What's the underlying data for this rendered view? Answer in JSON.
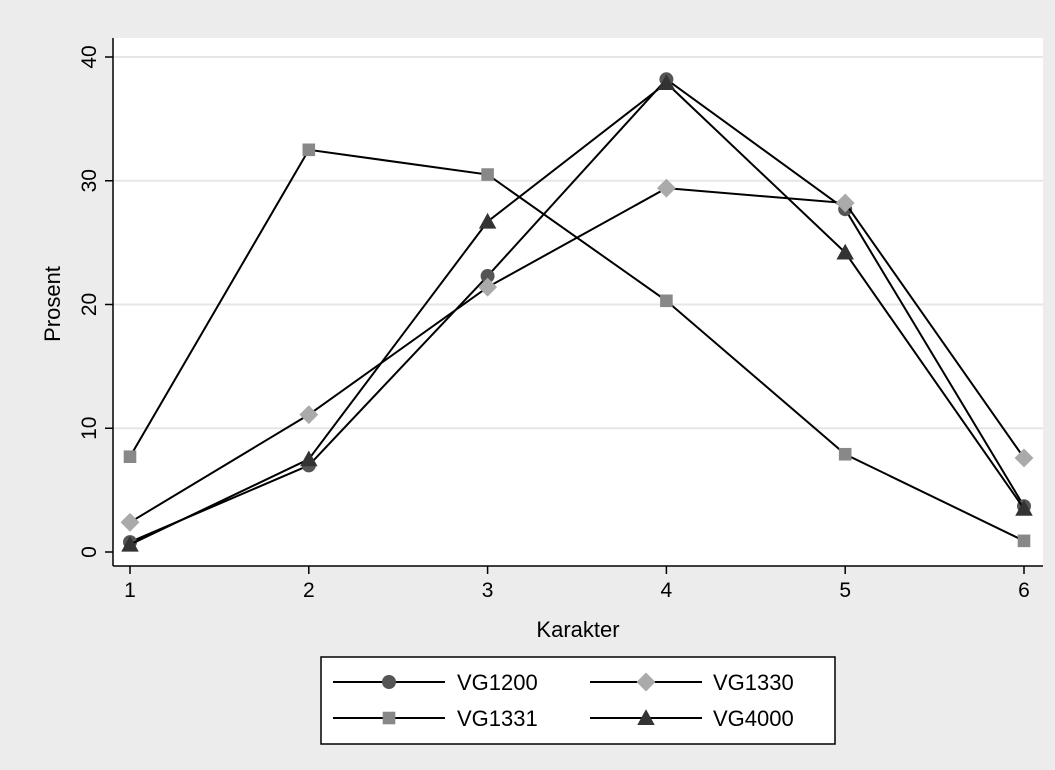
{
  "chart_data": {
    "type": "line",
    "xlabel": "Karakter",
    "ylabel": "Prosent",
    "x": [
      1,
      2,
      3,
      4,
      5,
      6
    ],
    "xlim": [
      1,
      6
    ],
    "ylim": [
      0,
      40
    ],
    "xticks": [
      1,
      2,
      3,
      4,
      5,
      6
    ],
    "yticks": [
      0,
      10,
      20,
      30,
      40
    ],
    "grid": "horizontal",
    "legend_position": "bottom",
    "series": [
      {
        "name": "VG1200",
        "marker": "circle",
        "color": "#555555",
        "values": [
          0.8,
          7.0,
          22.3,
          38.2,
          27.7,
          3.7
        ]
      },
      {
        "name": "VG1330",
        "marker": "diamond",
        "color": "#aaaaaa",
        "values": [
          2.4,
          11.1,
          21.4,
          29.4,
          28.2,
          7.6
        ]
      },
      {
        "name": "VG1331",
        "marker": "square",
        "color": "#888888",
        "values": [
          7.7,
          32.5,
          30.5,
          20.3,
          7.9,
          0.9
        ]
      },
      {
        "name": "VG4000",
        "marker": "triangle",
        "color": "#333333",
        "values": [
          0.6,
          7.5,
          26.7,
          37.9,
          24.2,
          3.5
        ]
      }
    ]
  }
}
